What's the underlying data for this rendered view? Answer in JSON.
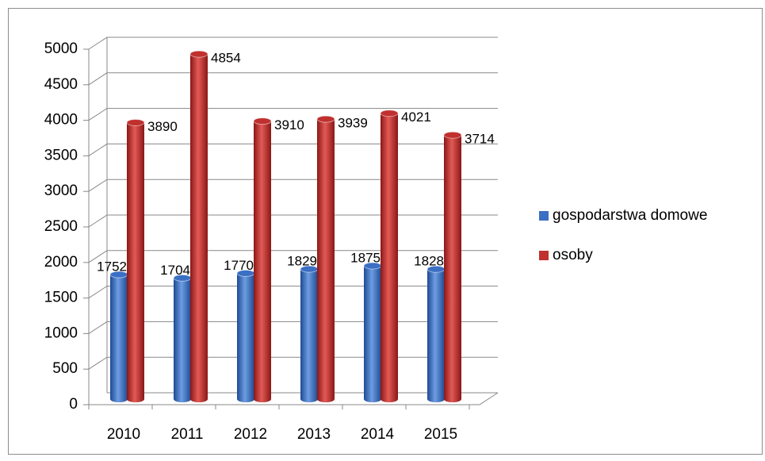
{
  "chart_data": {
    "type": "bar",
    "categories": [
      "2010",
      "2011",
      "2012",
      "2013",
      "2014",
      "2015"
    ],
    "series": [
      {
        "name": "gospodarstwa domowe",
        "color": "#3a6fc4",
        "values": [
          1752,
          1704,
          1770,
          1829,
          1875,
          1828
        ]
      },
      {
        "name": "osoby",
        "color": "#c0302e",
        "values": [
          3890,
          4854,
          3910,
          3939,
          4021,
          3714
        ]
      }
    ],
    "ylim": [
      0,
      5000
    ],
    "yticks": [
      0,
      500,
      1000,
      1500,
      2000,
      2500,
      3000,
      3500,
      4000,
      4500,
      5000
    ],
    "grid": true,
    "legend": "right"
  }
}
